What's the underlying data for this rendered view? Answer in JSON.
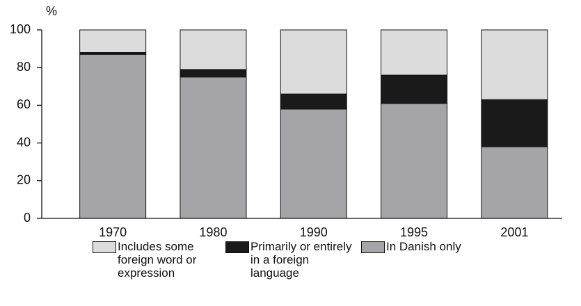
{
  "chart_data": {
    "type": "stacked_bar",
    "ylabel": "%",
    "categories": [
      "1970",
      "1980",
      "1990",
      "1995",
      "2001"
    ],
    "series": [
      {
        "name": "Includes some foreign word or expression",
        "color": "#dcdcdc",
        "values": [
          12,
          21,
          34,
          24,
          37
        ]
      },
      {
        "name": "Primarily or entirely in a foreign language",
        "color": "#1a1a1a",
        "values": [
          1,
          4,
          8,
          15,
          25
        ]
      },
      {
        "name": "In Danish only",
        "color": "#a5a5a7",
        "values": [
          87,
          75,
          58,
          61,
          38
        ]
      }
    ],
    "ylim": [
      0,
      100
    ],
    "yticks": [
      0,
      20,
      40,
      60,
      80,
      100
    ],
    "grid": false
  }
}
